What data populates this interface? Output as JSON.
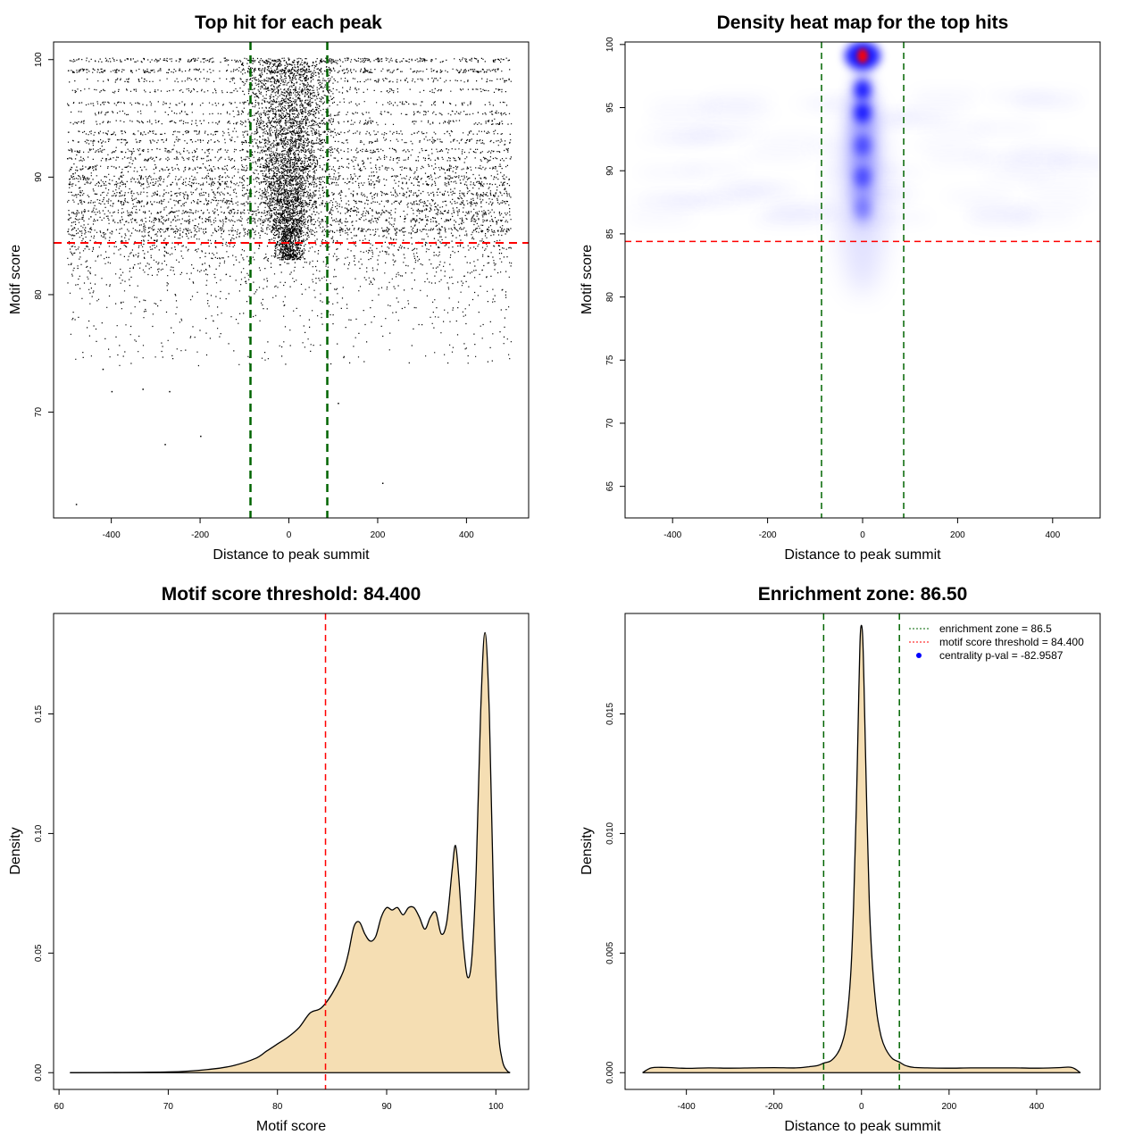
{
  "colors": {
    "threshold": "#ff0000",
    "enrichment": "#006400",
    "density_fill": "#f5deb3",
    "heat_low": "#ffffff",
    "heat_mid": "#0000ff",
    "heat_high": "#ff0000",
    "pval_marker": "#0000ff"
  },
  "chart_data": [
    {
      "id": "scatter",
      "type": "scatter",
      "title": "Top hit for each peak",
      "xlabel": "Distance to peak summit",
      "ylabel": "Motif score",
      "xlim": [
        -530,
        540
      ],
      "ylim": [
        61,
        101.5
      ],
      "xticks": [
        -400,
        -200,
        0,
        200,
        400
      ],
      "yticks": [
        70,
        80,
        90,
        100
      ],
      "vlines": [
        -86.5,
        86.5
      ],
      "hline": 84.4,
      "point_x_range": [
        -500,
        500
      ],
      "score_bands": [
        100,
        99.1,
        98.3,
        97.4,
        96.3,
        95.5,
        94.7,
        93.8,
        93.1,
        92.3,
        91.6,
        90.8,
        90.0,
        89.5,
        88.6,
        87.9,
        87.1,
        86.4,
        85.5
      ],
      "isolated_points": [
        [
          -480,
          62.2
        ],
        [
          -420,
          73.7
        ],
        [
          -400,
          71.8
        ],
        [
          -330,
          72.0
        ],
        [
          -280,
          67.3
        ],
        [
          -270,
          71.8
        ],
        [
          -200,
          68.0
        ],
        [
          210,
          64.0
        ],
        [
          110,
          70.8
        ]
      ]
    },
    {
      "id": "heatmap",
      "type": "heatmap",
      "title": "Density heat map for the top hits",
      "xlabel": "Distance to peak summit",
      "ylabel": "Motif score",
      "xlim": [
        -500,
        500
      ],
      "ylim": [
        62.5,
        100.2
      ],
      "xticks": [
        -400,
        -200,
        0,
        200,
        400
      ],
      "yticks": [
        65,
        70,
        75,
        80,
        85,
        90,
        95,
        100
      ],
      "vlines": [
        -86.5,
        86.5
      ],
      "hline": 84.4,
      "hotspots": [
        {
          "x": 0,
          "y": 99.1,
          "level": "red"
        },
        {
          "x": 0,
          "y": 96.4,
          "level": "blue"
        },
        {
          "x": 0,
          "y": 94.6,
          "level": "blue"
        },
        {
          "x": 0,
          "y": 92.0,
          "level": "mid"
        },
        {
          "x": 0,
          "y": 89.5,
          "level": "mid"
        },
        {
          "x": 0,
          "y": 87.0,
          "level": "faint"
        }
      ]
    },
    {
      "id": "score_density",
      "type": "area",
      "title": "Motif score threshold: 84.400",
      "xlabel": "Motif score",
      "ylabel": "Density",
      "xlim": [
        59.5,
        103
      ],
      "ylim": [
        -0.007,
        0.192
      ],
      "xticks": [
        60,
        70,
        80,
        90,
        100
      ],
      "yticks": [
        0.0,
        0.05,
        0.1,
        0.15
      ],
      "ytick_labels": [
        "0.00",
        "0.05",
        "0.10",
        "0.15"
      ],
      "vline": 84.4,
      "x": [
        61,
        70,
        74,
        76,
        78,
        79,
        80,
        81,
        82,
        83,
        84,
        85,
        86,
        86.5,
        87,
        87.5,
        88,
        88.5,
        89,
        89.5,
        90,
        90.5,
        91,
        91.5,
        92,
        92.5,
        93,
        93.5,
        94,
        94.5,
        95,
        95.5,
        96,
        96.3,
        96.6,
        97,
        97.4,
        97.8,
        98.2,
        98.6,
        99,
        99.4,
        99.8,
        100.2,
        100.6,
        101,
        101.3
      ],
      "y": [
        0,
        0.0003,
        0.0015,
        0.003,
        0.006,
        0.009,
        0.012,
        0.015,
        0.019,
        0.025,
        0.027,
        0.033,
        0.042,
        0.05,
        0.061,
        0.063,
        0.058,
        0.055,
        0.057,
        0.065,
        0.069,
        0.068,
        0.069,
        0.066,
        0.069,
        0.069,
        0.065,
        0.06,
        0.065,
        0.067,
        0.058,
        0.063,
        0.085,
        0.095,
        0.082,
        0.055,
        0.04,
        0.048,
        0.085,
        0.15,
        0.184,
        0.15,
        0.07,
        0.02,
        0.005,
        0.001,
        0
      ]
    },
    {
      "id": "distance_density",
      "type": "area",
      "title": "Enrichment zone: 86.50",
      "xlabel": "Distance to peak summit",
      "ylabel": "Density",
      "xlim": [
        -540,
        545
      ],
      "ylim": [
        -0.0007,
        0.0192
      ],
      "xticks": [
        -400,
        -200,
        0,
        200,
        400
      ],
      "yticks": [
        0.0,
        0.005,
        0.01,
        0.015
      ],
      "ytick_labels": [
        "0.000",
        "0.005",
        "0.010",
        "0.015"
      ],
      "vlines": [
        -86.5,
        86.5
      ],
      "x": [
        -500,
        -480,
        -450,
        -400,
        -350,
        -300,
        -250,
        -200,
        -150,
        -120,
        -100,
        -86,
        -70,
        -55,
        -45,
        -35,
        -25,
        -18,
        -12,
        -6,
        -3,
        0,
        3,
        6,
        12,
        18,
        25,
        35,
        45,
        55,
        70,
        86,
        100,
        120,
        150,
        200,
        250,
        300,
        350,
        400,
        450,
        480,
        500
      ],
      "y": [
        0,
        0.0002,
        0.00022,
        0.00018,
        0.0002,
        0.00019,
        0.0002,
        0.00021,
        0.0002,
        0.00025,
        0.0003,
        0.0004,
        0.0005,
        0.0008,
        0.0012,
        0.002,
        0.004,
        0.007,
        0.011,
        0.016,
        0.0182,
        0.0187,
        0.0181,
        0.016,
        0.011,
        0.007,
        0.0045,
        0.0025,
        0.0015,
        0.001,
        0.0006,
        0.00045,
        0.0003,
        0.00022,
        0.0002,
        0.00019,
        0.0002,
        0.0002,
        0.0002,
        0.00019,
        0.00021,
        0.00022,
        0
      ],
      "legend": {
        "placement": "top-right",
        "entries": [
          {
            "label": "enrichment zone = 86.5",
            "style": "dotted-line",
            "color": "#006400"
          },
          {
            "label": "motif score threshold = 84.400",
            "style": "dotted-line",
            "color": "#ff0000"
          },
          {
            "label": "centrality p-val = -82.9587",
            "style": "dot",
            "color": "#0000ff"
          }
        ]
      }
    }
  ]
}
